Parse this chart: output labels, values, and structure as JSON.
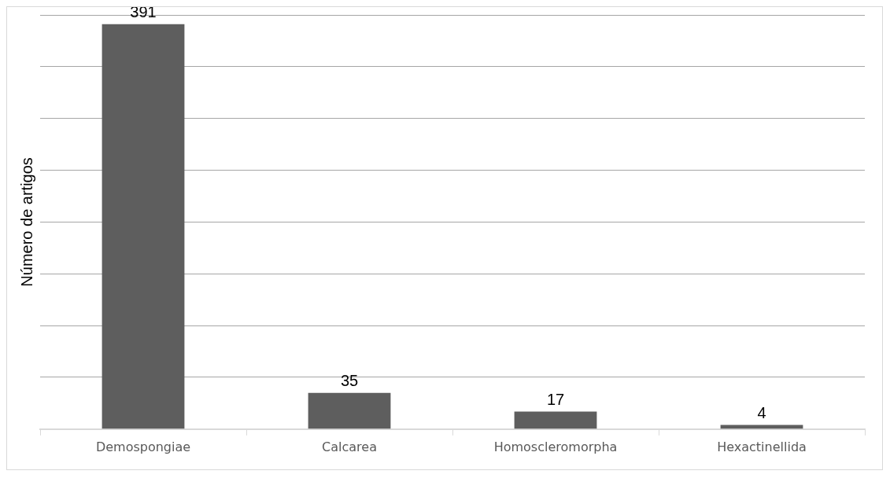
{
  "chart_data": {
    "type": "bar",
    "ylabel": "Número de artigos",
    "categories": [
      "Demospongiae",
      "Calcarea",
      "Homoscleromorpha",
      "Hexactinellida"
    ],
    "values": [
      391,
      35,
      17,
      4
    ],
    "color": "#5e5e5e",
    "ylim": [
      0,
      400
    ],
    "yticks": [
      {
        "value": 0,
        "label": null
      },
      {
        "value": 50,
        "label": null
      },
      {
        "value": 100,
        "label": null
      },
      {
        "value": 150,
        "label": null
      },
      {
        "value": 200,
        "label": null
      },
      {
        "value": 250,
        "label": null
      },
      {
        "value": 300,
        "label": null
      },
      {
        "value": 350,
        "label": null
      },
      {
        "value": 400,
        "label": null
      }
    ],
    "tick_labels": "x",
    "grid": "y",
    "data_labels": true,
    "legend": false
  }
}
